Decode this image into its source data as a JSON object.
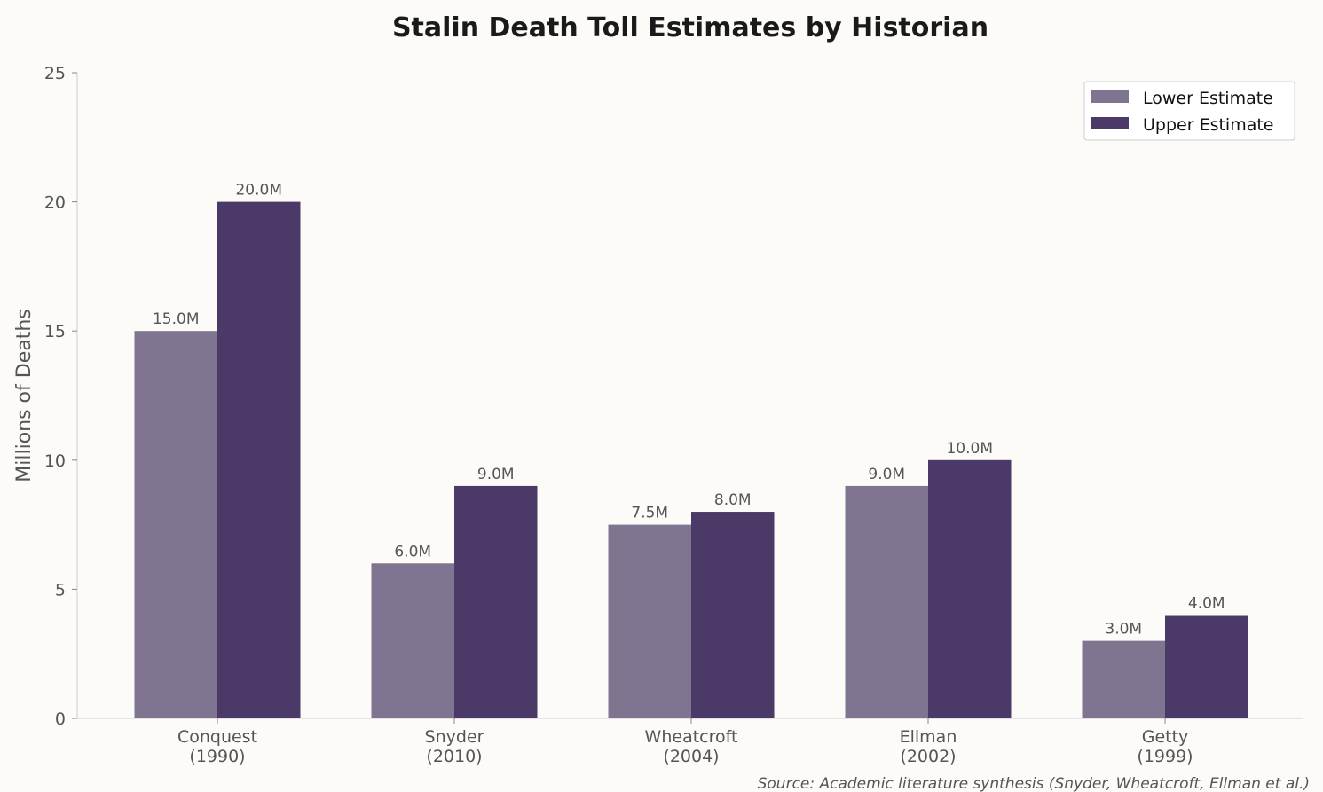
{
  "chart_data": {
    "type": "bar",
    "title": "Stalin Death Toll Estimates by Historian",
    "xlabel": "",
    "ylabel": "Millions of Deaths",
    "ylim": [
      0,
      25
    ],
    "yticks": [
      "0",
      "5",
      "10",
      "15",
      "20",
      "25"
    ],
    "grid": false,
    "legend_position": "top-right",
    "categories": [
      [
        "Conquest",
        "(1990)"
      ],
      [
        "Snyder",
        "(2010)"
      ],
      [
        "Wheatcroft",
        "(2004)"
      ],
      [
        "Ellman",
        "(2002)"
      ],
      [
        "Getty",
        "(1999)"
      ]
    ],
    "series": [
      {
        "name": "Lower Estimate",
        "color": "#7f7591",
        "values": [
          15.0,
          6.0,
          7.5,
          9.0,
          3.0
        ],
        "labels": [
          "15.0M",
          "6.0M",
          "7.5M",
          "9.0M",
          "3.0M"
        ]
      },
      {
        "name": "Upper Estimate",
        "color": "#4b3a67",
        "values": [
          20.0,
          9.0,
          8.0,
          10.0,
          4.0
        ],
        "labels": [
          "20.0M",
          "9.0M",
          "8.0M",
          "10.0M",
          "4.0M"
        ]
      }
    ],
    "source": "Source: Academic literature synthesis (Snyder, Wheatcroft, Ellman et al.)"
  }
}
